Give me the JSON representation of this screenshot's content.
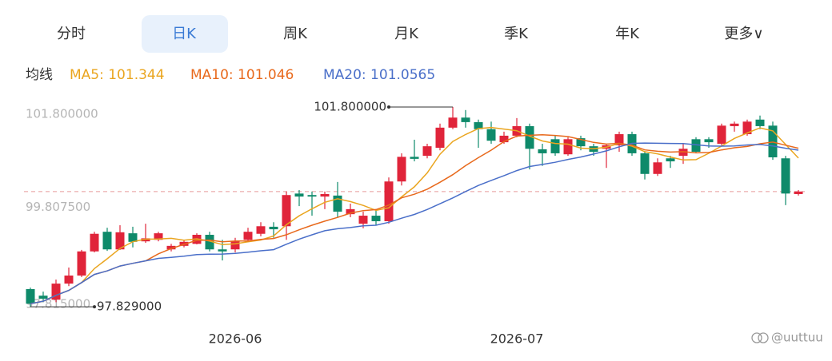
{
  "tabs": [
    "分时",
    "日K",
    "周K",
    "月K",
    "季K",
    "年K",
    "更多∨"
  ],
  "active_tab": 1,
  "watermark": "@uuttuu",
  "chart_data": {
    "type": "candlestick",
    "legend_title": "均线",
    "series": [
      {
        "name": "MA5: 101.344",
        "color": "#eaa51f"
      },
      {
        "name": "MA10: 101.046",
        "color": "#e8691c"
      },
      {
        "name": "MA20: 101.0565",
        "color": "#4a6fc9"
      }
    ],
    "up_color": "#e0243a",
    "down_color": "#0e8a6a",
    "categories": [
      null,
      null,
      null,
      null,
      null,
      null,
      null,
      null,
      null,
      null,
      null,
      null,
      null,
      null,
      null,
      null,
      "2026-06",
      null,
      null,
      null,
      null,
      null,
      null,
      null,
      null,
      null,
      null,
      null,
      null,
      null,
      null,
      null,
      null,
      null,
      null,
      null,
      null,
      null,
      "2026-07",
      null,
      null,
      null,
      null,
      null,
      null,
      null,
      null,
      null,
      null,
      null,
      null,
      null,
      null,
      null,
      null,
      null,
      null,
      null,
      null,
      null,
      null
    ],
    "open": [
      98.18,
      98.05,
      97.97,
      98.29,
      98.45,
      98.93,
      99.32,
      98.97,
      99.29,
      99.13,
      99.16,
      98.97,
      99.04,
      99.08,
      99.26,
      98.97,
      98.97,
      99.16,
      99.28,
      99.42,
      99.43,
      100.08,
      100.05,
      100.02,
      100.04,
      99.67,
      99.48,
      99.64,
      99.53,
      100.32,
      100.81,
      100.83,
      100.99,
      101.39,
      101.59,
      101.5,
      101.36,
      101.1,
      101.23,
      101.42,
      100.96,
      101.16,
      100.86,
      101.18,
      101.02,
      100.97,
      101.04,
      101.26,
      100.88,
      100.47,
      100.78,
      100.83,
      101.16,
      101.16,
      101.07,
      101.42,
      101.26,
      101.55,
      101.43,
      100.78,
      100.07
    ],
    "close": [
      97.89,
      97.99,
      98.29,
      98.45,
      98.93,
      99.28,
      98.97,
      99.31,
      99.12,
      99.19,
      99.29,
      99.04,
      99.12,
      99.26,
      98.97,
      98.93,
      99.13,
      99.32,
      99.43,
      99.37,
      100.05,
      100.02,
      100.02,
      100.07,
      99.72,
      99.77,
      99.64,
      99.53,
      100.32,
      100.81,
      100.77,
      101.02,
      101.39,
      101.59,
      101.5,
      101.36,
      101.13,
      101.23,
      101.42,
      100.97,
      100.88,
      100.88,
      101.16,
      101.02,
      100.91,
      101.04,
      101.26,
      100.88,
      100.47,
      100.7,
      100.72,
      100.97,
      100.91,
      101.1,
      101.43,
      101.47,
      101.51,
      101.42,
      100.8,
      100.08,
      100.12
    ],
    "high": [
      98.21,
      98.13,
      98.37,
      98.61,
      98.96,
      99.32,
      99.4,
      99.45,
      99.42,
      99.48,
      99.32,
      99.08,
      99.16,
      99.29,
      99.32,
      99.16,
      99.2,
      99.4,
      99.51,
      99.51,
      100.12,
      100.15,
      100.12,
      100.12,
      100.31,
      99.88,
      99.72,
      99.77,
      100.4,
      100.88,
      101.15,
      101.07,
      101.47,
      101.8,
      101.74,
      101.55,
      101.51,
      101.31,
      101.58,
      101.47,
      101.07,
      101.23,
      101.2,
      101.23,
      101.07,
      101.07,
      101.31,
      101.31,
      100.91,
      100.78,
      100.83,
      101.07,
      101.2,
      101.2,
      101.47,
      101.51,
      101.55,
      101.63,
      101.51,
      100.83,
      100.15
    ],
    "low": [
      97.829,
      97.92,
      97.92,
      98.24,
      98.42,
      98.91,
      98.94,
      98.96,
      99.01,
      99.1,
      99.13,
      98.93,
      99.01,
      99.07,
      98.93,
      98.75,
      98.91,
      99.13,
      99.23,
      99.2,
      99.16,
      99.83,
      99.64,
      99.77,
      99.61,
      99.61,
      99.39,
      99.45,
      99.48,
      100.24,
      100.72,
      100.78,
      100.94,
      101.36,
      101.39,
      100.99,
      101.07,
      101.07,
      101.2,
      100.56,
      100.63,
      100.83,
      100.83,
      100.94,
      100.83,
      100.59,
      100.91,
      100.83,
      100.36,
      100.43,
      100.59,
      100.67,
      100.88,
      100.99,
      101.04,
      101.31,
      101.23,
      101.36,
      100.75,
      99.85,
      100.04
    ],
    "ylim": [
      97.815,
      101.8
    ],
    "yticks": [
      {
        "value": 101.8,
        "label": "101.800000"
      },
      {
        "value": 99.8075,
        "label": "99.807500"
      },
      {
        "value": 97.815,
        "label": "97.815000"
      }
    ],
    "annotations": [
      {
        "value": 101.8,
        "label": "101.800000"
      },
      {
        "value": 97.829,
        "label": "97.829000"
      }
    ]
  }
}
